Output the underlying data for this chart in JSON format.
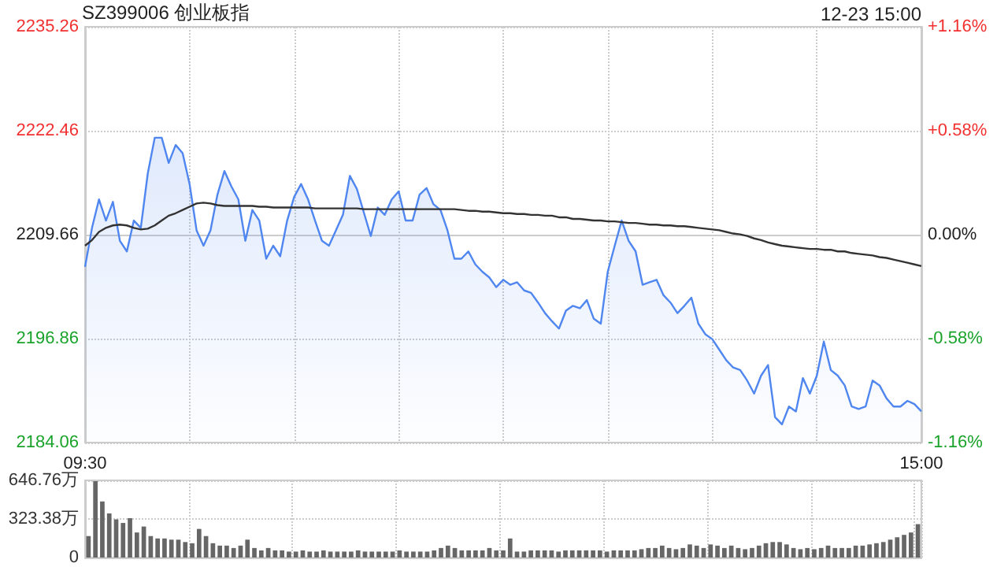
{
  "chart_data": [
    {
      "type": "line",
      "title": "SZ399006 创业板指",
      "annotations": [
        "12-23 15:00"
      ],
      "categories": [
        "09:30",
        null,
        null,
        null,
        null,
        null,
        null,
        null,
        null,
        null,
        null,
        null,
        null,
        null,
        null,
        null,
        null,
        null,
        null,
        null,
        null,
        null,
        null,
        null,
        null,
        null,
        null,
        null,
        null,
        null,
        null,
        null,
        null,
        null,
        null,
        null,
        null,
        null,
        null,
        null,
        null,
        null,
        null,
        null,
        null,
        null,
        null,
        null,
        null,
        null,
        null,
        null,
        null,
        null,
        null,
        null,
        null,
        null,
        null,
        null,
        null,
        null,
        null,
        null,
        null,
        null,
        null,
        null,
        null,
        null,
        null,
        null,
        null,
        null,
        null,
        null,
        null,
        null,
        null,
        null,
        null,
        null,
        null,
        null,
        null,
        null,
        null,
        null,
        null,
        null,
        null,
        null,
        null,
        null,
        null,
        null,
        null,
        null,
        null,
        null,
        null,
        null,
        null,
        null,
        null,
        null,
        null,
        null,
        null,
        null,
        null,
        null,
        null,
        null,
        null,
        null,
        null,
        null,
        null,
        null,
        "15:00"
      ],
      "series": [
        {
          "type": "area",
          "color": "#4f86f0",
          "values": [
            2205.7,
            2210.5,
            2214.0,
            2211.4,
            2213.7,
            2208.9,
            2207.6,
            2211.4,
            2210.5,
            2217.2,
            2221.6,
            2221.6,
            2218.5,
            2220.7,
            2219.7,
            2215.9,
            2210.2,
            2208.3,
            2210.2,
            2214.6,
            2217.5,
            2215.6,
            2214.0,
            2208.9,
            2212.7,
            2211.4,
            2206.7,
            2208.3,
            2207.0,
            2211.4,
            2214.3,
            2215.9,
            2214.0,
            2211.4,
            2208.9,
            2208.3,
            2210.2,
            2212.1,
            2216.9,
            2215.3,
            2212.4,
            2209.5,
            2213.0,
            2212.1,
            2214.0,
            2215.0,
            2211.4,
            2211.4,
            2214.6,
            2215.4,
            2213.4,
            2212.7,
            2210.2,
            2206.7,
            2206.7,
            2207.6,
            2206.0,
            2205.1,
            2204.4,
            2203.2,
            2204.1,
            2203.5,
            2203.8,
            2202.8,
            2202.5,
            2201.3,
            2200.0,
            2199.0,
            2198.1,
            2200.3,
            2200.9,
            2200.6,
            2201.6,
            2199.3,
            2198.7,
            2205.1,
            2208.3,
            2211.4,
            2208.9,
            2207.6,
            2203.5,
            2203.8,
            2204.1,
            2202.2,
            2201.3,
            2200.0,
            2200.9,
            2201.9,
            2198.7,
            2197.4,
            2196.8,
            2195.5,
            2194.2,
            2193.3,
            2193.0,
            2191.7,
            2190.1,
            2192.3,
            2193.6,
            2187.2,
            2186.3,
            2188.5,
            2187.9,
            2192.0,
            2190.1,
            2192.3,
            2196.5,
            2193.0,
            2192.3,
            2191.1,
            2188.5,
            2188.2,
            2188.5,
            2191.7,
            2191.1,
            2189.5,
            2188.5,
            2188.5,
            2189.2,
            2188.8,
            2187.9
          ]
        },
        {
          "type": "line",
          "color": "#333333",
          "values": [
            2208.3,
            2209.0,
            2210.0,
            2210.5,
            2210.8,
            2210.9,
            2210.8,
            2210.5,
            2210.3,
            2210.4,
            2210.8,
            2211.4,
            2212.0,
            2212.3,
            2212.7,
            2213.1,
            2213.5,
            2213.6,
            2213.5,
            2213.3,
            2213.2,
            2213.2,
            2213.2,
            2213.2,
            2213.2,
            2213.1,
            2213.1,
            2213.0,
            2213.0,
            2213.0,
            2213.0,
            2213.0,
            2213.0,
            2212.9,
            2212.9,
            2212.9,
            2212.9,
            2212.9,
            2212.9,
            2212.9,
            2212.8,
            2212.8,
            2212.8,
            2212.8,
            2212.8,
            2212.8,
            2212.8,
            2212.8,
            2212.8,
            2212.8,
            2212.8,
            2212.8,
            2212.8,
            2212.8,
            2212.7,
            2212.6,
            2212.6,
            2212.5,
            2212.5,
            2212.4,
            2212.3,
            2212.3,
            2212.2,
            2212.2,
            2212.1,
            2212.1,
            2212.0,
            2212.0,
            2211.8,
            2211.8,
            2211.6,
            2211.6,
            2211.5,
            2211.4,
            2211.4,
            2211.3,
            2211.3,
            2211.2,
            2211.1,
            2211.1,
            2211.0,
            2210.9,
            2210.9,
            2210.8,
            2210.8,
            2210.7,
            2210.7,
            2210.6,
            2210.5,
            2210.4,
            2210.3,
            2210.2,
            2210.0,
            2209.8,
            2209.7,
            2209.5,
            2209.2,
            2209.0,
            2208.7,
            2208.5,
            2208.3,
            2208.2,
            2208.1,
            2208.0,
            2207.9,
            2207.9,
            2207.8,
            2207.8,
            2207.6,
            2207.6,
            2207.4,
            2207.3,
            2207.2,
            2207.1,
            2206.9,
            2206.8,
            2206.6,
            2206.4,
            2206.2,
            2206.0,
            2205.8
          ]
        }
      ],
      "ylim": [
        2184.06,
        2235.26
      ],
      "yticks": [
        2184.06,
        2196.86,
        2209.66,
        2222.46,
        2235.26
      ],
      "y2lim": [
        -1.16,
        1.16
      ],
      "y2ticks": [
        {
          "value": -1.16,
          "label": "-1.16%"
        },
        {
          "value": -0.58,
          "label": "-0.58%"
        },
        {
          "value": 0,
          "label": "0.00%"
        },
        {
          "value": 0.58,
          "label": "+0.58%"
        },
        {
          "value": 1.16,
          "label": "+1.16%"
        }
      ],
      "grid": true,
      "marker": "none"
    },
    {
      "type": "bar",
      "color": "#666666",
      "categories": [
        null,
        null,
        null,
        null,
        null,
        null,
        null,
        null,
        null,
        null,
        null,
        null,
        null,
        null,
        null,
        null,
        null,
        null,
        null,
        null,
        null,
        null,
        null,
        null,
        null,
        null,
        null,
        null,
        null,
        null,
        null,
        null,
        null,
        null,
        null,
        null,
        null,
        null,
        null,
        null,
        null,
        null,
        null,
        null,
        null,
        null,
        null,
        null,
        null,
        null,
        null,
        null,
        null,
        null,
        null,
        null,
        null,
        null,
        null,
        null,
        null,
        null,
        null,
        null,
        null,
        null,
        null,
        null,
        null,
        null,
        null,
        null,
        null,
        null,
        null,
        null,
        null,
        null,
        null,
        null,
        null,
        null,
        null,
        null,
        null,
        null,
        null,
        null,
        null,
        null,
        null,
        null,
        null,
        null,
        null,
        null,
        null,
        null,
        null,
        null,
        null,
        null,
        null,
        null,
        null,
        null,
        null,
        null,
        null,
        null,
        null,
        null,
        null,
        null,
        null,
        null,
        null,
        null,
        null,
        null,
        null
      ],
      "values": [
        180,
        640,
        470,
        370,
        320,
        290,
        330,
        210,
        260,
        180,
        160,
        160,
        150,
        150,
        130,
        120,
        240,
        180,
        120,
        100,
        100,
        80,
        100,
        150,
        80,
        60,
        80,
        60,
        60,
        50,
        50,
        60,
        50,
        50,
        60,
        50,
        50,
        50,
        50,
        60,
        50,
        50,
        50,
        50,
        50,
        60,
        50,
        50,
        50,
        50,
        60,
        80,
        100,
        80,
        60,
        60,
        60,
        60,
        80,
        60,
        60,
        160,
        50,
        50,
        60,
        60,
        60,
        60,
        50,
        60,
        60,
        60,
        60,
        60,
        60,
        50,
        60,
        60,
        60,
        60,
        70,
        80,
        80,
        100,
        80,
        70,
        80,
        110,
        100,
        80,
        110,
        100,
        80,
        100,
        80,
        70,
        80,
        100,
        120,
        130,
        130,
        110,
        80,
        70,
        80,
        70,
        80,
        100,
        80,
        80,
        80,
        100,
        100,
        110,
        120,
        130,
        150,
        170,
        190,
        210,
        280
      ],
      "ylim": [
        0,
        646.76
      ],
      "yticks": [
        0,
        {
          "value": 323.38,
          "label": "323.38万"
        },
        {
          "value": 646.76,
          "label": "646.76万"
        }
      ],
      "grid": true,
      "tick_labels": "y"
    }
  ]
}
